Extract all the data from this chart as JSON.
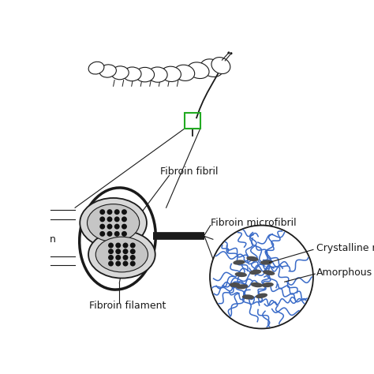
{
  "bg_color": "#ffffff",
  "line_color": "#1a1a1a",
  "dot_color": "#111111",
  "blue_color": "#3a6bc8",
  "crystalline_color": "#4d4d4d",
  "green_box_color": "#22aa22",
  "gray_fill": "#d8d8d8",
  "gray_inner": "#bbbbbb",
  "labels": {
    "fibroin_fibril": "Fibroin fibril",
    "fibroin_microfibril": "Fibroin microfibril",
    "crystalline": "Crystalline regio",
    "amorphous": "Amorphous",
    "fibroin_filament": "Fibroin filament",
    "sericin": "n"
  },
  "font_size": 9,
  "font_family": "DejaVu Sans"
}
